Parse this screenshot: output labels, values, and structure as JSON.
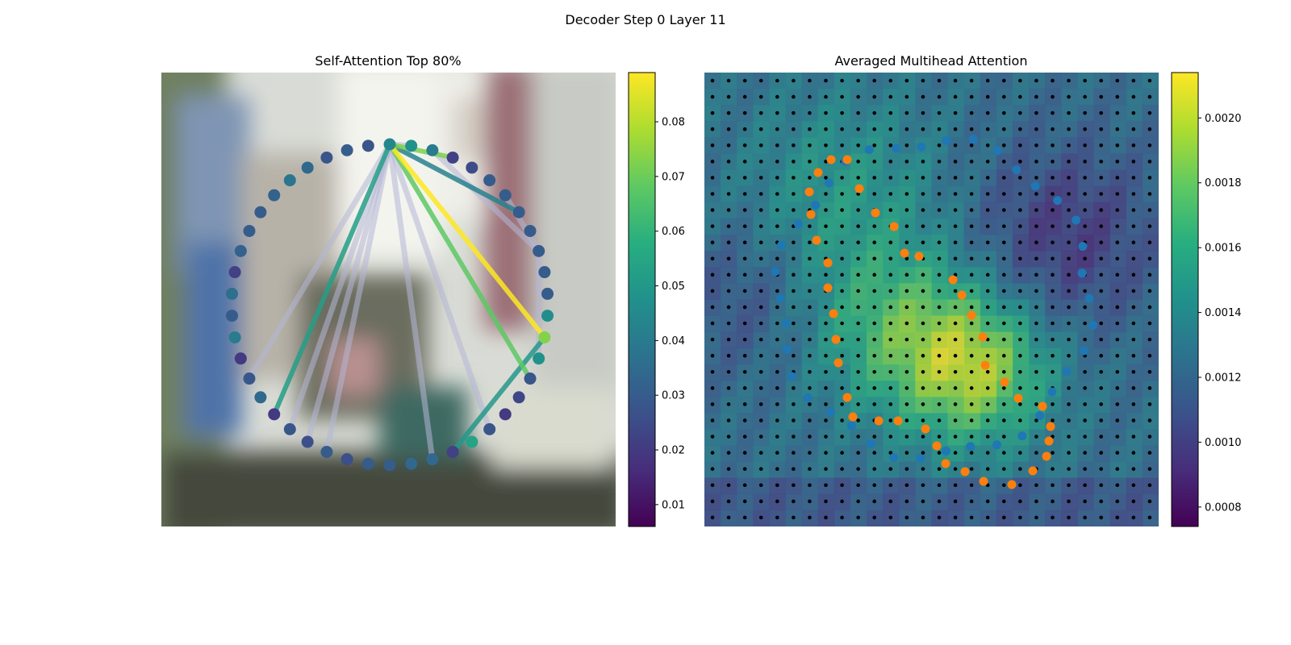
{
  "figure": {
    "suptitle": "Decoder Step 0 Layer 11"
  },
  "chart_data": [
    {
      "type": "network",
      "title": "Self-Attention Top 80%",
      "background": "blurred photo",
      "colorbar": {
        "min": 0.006,
        "max": 0.089,
        "ticks": [
          "0.01",
          "0.02",
          "0.03",
          "0.04",
          "0.05",
          "0.06",
          "0.07",
          "0.08"
        ],
        "colormap": "viridis"
      },
      "nodes": [
        0.044,
        0.028,
        0.03,
        0.028,
        0.034,
        0.038,
        0.032,
        0.03,
        0.03,
        0.032,
        0.022,
        0.036,
        0.03,
        0.04,
        0.02,
        0.028,
        0.034,
        0.02,
        0.028,
        0.026,
        0.03,
        0.026,
        0.03,
        0.03,
        0.034,
        0.034,
        0.022,
        0.054,
        0.028,
        0.02,
        0.024,
        0.028,
        0.048,
        0.073,
        0.046,
        0.03,
        0.03,
        0.03,
        0.03,
        0.03,
        0.03,
        0.03,
        0.025,
        0.022,
        0.04,
        0.048
      ],
      "edges": [
        {
          "from": 0,
          "to": 33,
          "weight": 0.089
        },
        {
          "from": 0,
          "to": 31,
          "weight": 0.068
        },
        {
          "from": 0,
          "to": 17,
          "weight": 0.052
        },
        {
          "from": 0,
          "to": 43,
          "weight": 0.072
        },
        {
          "from": 0,
          "to": 39,
          "weight": 0.042
        },
        {
          "from": 0,
          "to": 15,
          "weight": 0.022
        },
        {
          "from": 0,
          "to": 45,
          "weight": 0.024
        },
        {
          "from": 0,
          "to": 18,
          "weight": 0.02
        },
        {
          "from": 0,
          "to": 19,
          "weight": 0.02
        },
        {
          "from": 0,
          "to": 25,
          "weight": 0.022
        },
        {
          "from": 0,
          "to": 28,
          "weight": 0.022
        },
        {
          "from": 0,
          "to": 20,
          "weight": 0.02
        },
        {
          "from": 33,
          "to": 26,
          "weight": 0.05
        },
        {
          "from": 32,
          "to": 37,
          "weight": 0.022
        },
        {
          "from": 44,
          "to": 37,
          "weight": 0.022
        },
        {
          "from": 40,
          "to": 37,
          "weight": 0.022
        }
      ]
    },
    {
      "type": "heatmap",
      "title": "Averaged Multihead Attention",
      "colorbar": {
        "min": 0.00074,
        "max": 0.00214,
        "ticks": [
          "0.0008",
          "0.0010",
          "0.0012",
          "0.0014",
          "0.0016",
          "0.0018",
          "0.0020"
        ],
        "colormap": "viridis"
      },
      "grid_size": 28,
      "series": [
        {
          "color": "#1f77b4"
        },
        {
          "color": "#ff7f0e"
        }
      ]
    }
  ]
}
